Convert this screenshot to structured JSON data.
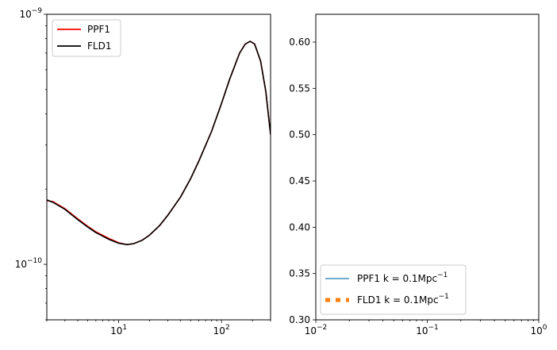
{
  "chart_data": [
    {
      "type": "line",
      "xscale": "log",
      "yscale": "log",
      "xlim": [
        2,
        300
      ],
      "ylim": [
        6e-11,
        1e-09
      ],
      "grid": false,
      "legend_position": "top-left",
      "x_tick_labels": [
        {
          "value": 10,
          "base": "10",
          "exp": "1"
        },
        {
          "value": 100,
          "base": "10",
          "exp": "2"
        }
      ],
      "y_tick_labels": [
        {
          "value": 1e-10,
          "base": "10",
          "exp": "−10"
        },
        {
          "value": 1e-09,
          "base": "10",
          "exp": "−9"
        }
      ],
      "series": [
        {
          "name": "PPF1",
          "color": "#ff0000",
          "x": [
            2,
            2.3,
            3,
            4,
            5,
            6,
            8,
            10,
            12,
            14,
            17,
            20,
            25,
            30,
            40,
            50,
            60,
            80,
            100,
            120,
            150,
            170,
            190,
            210,
            240,
            270,
            300
          ],
          "y": [
            1.8e-10,
            1.78e-10,
            1.67e-10,
            1.52e-10,
            1.42e-10,
            1.35e-10,
            1.27e-10,
            1.22e-10,
            1.2e-10,
            1.21e-10,
            1.25e-10,
            1.31e-10,
            1.43e-10,
            1.57e-10,
            1.86e-10,
            2.2e-10,
            2.58e-10,
            3.4e-10,
            4.4e-10,
            5.5e-10,
            7e-10,
            7.6e-10,
            7.8e-10,
            7.6e-10,
            6.5e-10,
            4.9e-10,
            3.3e-10
          ]
        },
        {
          "name": "FLD1",
          "color": "#000000",
          "x": [
            2,
            2.3,
            3,
            4,
            5,
            6,
            8,
            10,
            12,
            14,
            17,
            20,
            25,
            30,
            40,
            50,
            60,
            80,
            100,
            120,
            150,
            170,
            190,
            210,
            240,
            270,
            300
          ],
          "y": [
            1.81e-10,
            1.77e-10,
            1.66e-10,
            1.51e-10,
            1.41e-10,
            1.34e-10,
            1.26e-10,
            1.215e-10,
            1.2e-10,
            1.21e-10,
            1.25e-10,
            1.31e-10,
            1.43e-10,
            1.57e-10,
            1.86e-10,
            2.2e-10,
            2.58e-10,
            3.4e-10,
            4.4e-10,
            5.5e-10,
            7e-10,
            7.6e-10,
            7.8e-10,
            7.6e-10,
            6.5e-10,
            4.9e-10,
            3.3e-10
          ]
        }
      ]
    },
    {
      "type": "line",
      "xscale": "log",
      "yscale": "linear",
      "xlim": [
        0.01,
        1
      ],
      "ylim": [
        0.3,
        0.63
      ],
      "grid": false,
      "legend_position": "bottom-left",
      "x_tick_labels": [
        {
          "value": 0.01,
          "base": "10",
          "exp": "−2"
        },
        {
          "value": 0.1,
          "base": "10",
          "exp": "−1"
        },
        {
          "value": 1,
          "base": "10",
          "exp": "0"
        }
      ],
      "y_ticks": [
        0.3,
        0.35,
        0.4,
        0.45,
        0.5,
        0.55,
        0.6
      ],
      "y_tick_labels": [
        "0.30",
        "0.35",
        "0.40",
        "0.45",
        "0.50",
        "0.55",
        "0.60"
      ],
      "series": [
        {
          "name": "PPF1 k = 0.1Mpc",
          "name_exp": "−1",
          "color": "#1f77b4",
          "style": "solid",
          "x": [],
          "y": []
        },
        {
          "name": "FLD1 k = 0.1Mpc",
          "name_exp": "−1",
          "color": "#ff7f0e",
          "style": "dotted",
          "x": [],
          "y": []
        }
      ]
    }
  ]
}
